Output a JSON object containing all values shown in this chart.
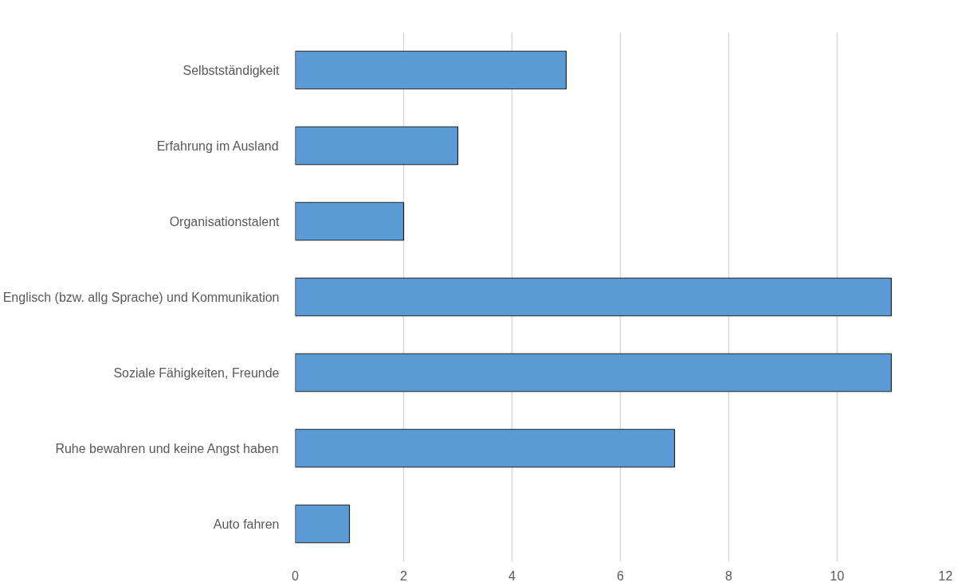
{
  "chart_data": {
    "type": "bar",
    "orientation": "horizontal",
    "categories": [
      "Selbstständigkeit",
      "Erfahrung im Ausland",
      "Organisationstalent",
      "Englisch (bzw. allg Sprache) und Kommunikation",
      "Soziale Fähigkeiten, Freunde",
      "Ruhe bewahren und keine Angst haben",
      "Auto fahren"
    ],
    "values": [
      5,
      3,
      2,
      11,
      11,
      7,
      1
    ],
    "color": "#5b9bd5",
    "xlim": [
      0,
      12
    ],
    "xticks": [
      0,
      2,
      4,
      6,
      8,
      10,
      12
    ],
    "grid": "x"
  }
}
